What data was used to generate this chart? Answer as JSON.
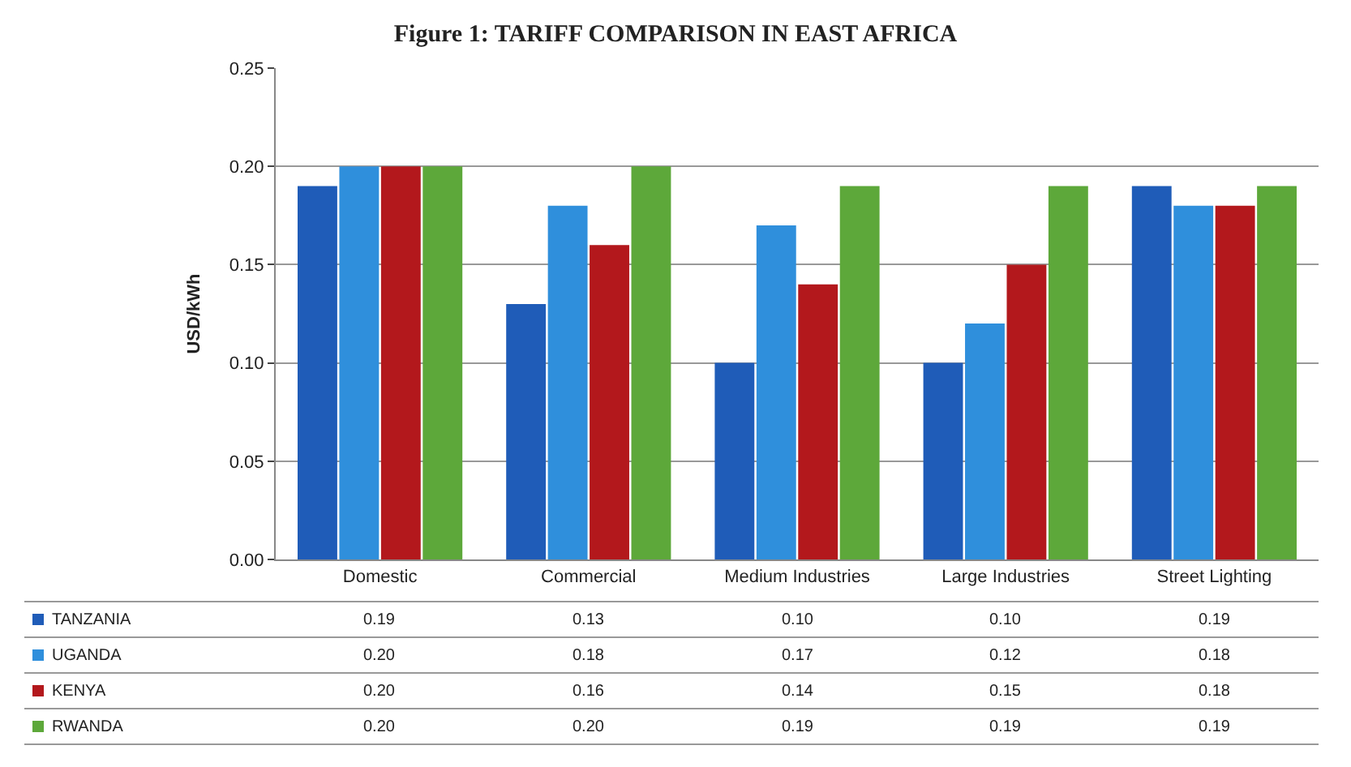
{
  "chart_data": {
    "type": "bar",
    "title": "Figure 1: TARIFF COMPARISON IN EAST AFRICA",
    "ylabel": "USD/kWh",
    "categories": [
      "Domestic",
      "Commercial",
      "Medium Industries",
      "Large Industries",
      "Street Lighting"
    ],
    "series": [
      {
        "name": "TANZANIA",
        "color": "#1f5cb8",
        "values": [
          0.19,
          0.13,
          0.1,
          0.1,
          0.19
        ],
        "value_labels": [
          "0.19",
          "0.13",
          "0.10",
          "0.10",
          "0.19"
        ]
      },
      {
        "name": "UGANDA",
        "color": "#2f8fdc",
        "values": [
          0.2,
          0.18,
          0.17,
          0.12,
          0.18
        ],
        "value_labels": [
          "0.20",
          "0.18",
          "0.17",
          "0.12",
          "0.18"
        ]
      },
      {
        "name": "KENYA",
        "color": "#b3181c",
        "values": [
          0.2,
          0.16,
          0.14,
          0.15,
          0.18
        ],
        "value_labels": [
          "0.20",
          "0.16",
          "0.14",
          "0.15",
          "0.18"
        ]
      },
      {
        "name": "RWANDA",
        "color": "#5da83a",
        "values": [
          0.2,
          0.2,
          0.19,
          0.19,
          0.19
        ],
        "value_labels": [
          "0.20",
          "0.20",
          "0.19",
          "0.19",
          "0.19"
        ]
      }
    ],
    "ylim": [
      0,
      0.25
    ],
    "yticks": [
      {
        "value": 0,
        "label": "0.00"
      },
      {
        "value": 0.05,
        "label": "0.05"
      },
      {
        "value": 0.1,
        "label": "0.10"
      },
      {
        "value": 0.15,
        "label": "0.15"
      },
      {
        "value": 0.2,
        "label": "0.20"
      },
      {
        "value": 0.25,
        "label": "0.25"
      }
    ],
    "grid": "y",
    "legend": "bottom"
  }
}
